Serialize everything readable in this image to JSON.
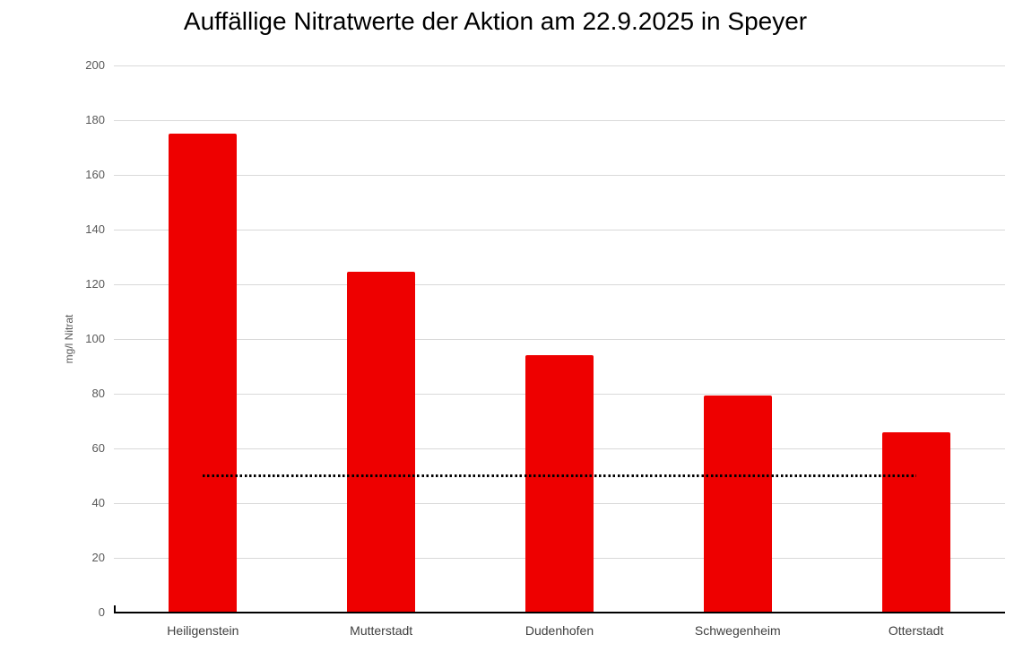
{
  "chart_data": {
    "type": "bar",
    "title": "Auffällige Nitratwerte der Aktion am 22.9.2025 in Speyer",
    "xlabel": "",
    "ylabel": "mg/l Nitrat",
    "categories": [
      "Heiligenstein",
      "Mutterstadt",
      "Dudenhofen",
      "Schwegenheim",
      "Otterstadt"
    ],
    "values": [
      175,
      124.5,
      94,
      79.5,
      66
    ],
    "limit_line": {
      "value": 50,
      "style": "dotted",
      "color": "#000000",
      "extent": "first-to-last-category-center"
    },
    "ylim": [
      0,
      200
    ],
    "ytick_step": 20,
    "yticks": [
      0,
      20,
      40,
      60,
      80,
      100,
      120,
      140,
      160,
      180,
      200
    ],
    "grid": true,
    "legend": "none",
    "bar_color": "#ee0000",
    "gridline_color": "#d9d9d9",
    "tick_label_color": "#595959",
    "category_label_color": "#404040",
    "axis_color": "#000000",
    "background_color": "#ffffff"
  }
}
